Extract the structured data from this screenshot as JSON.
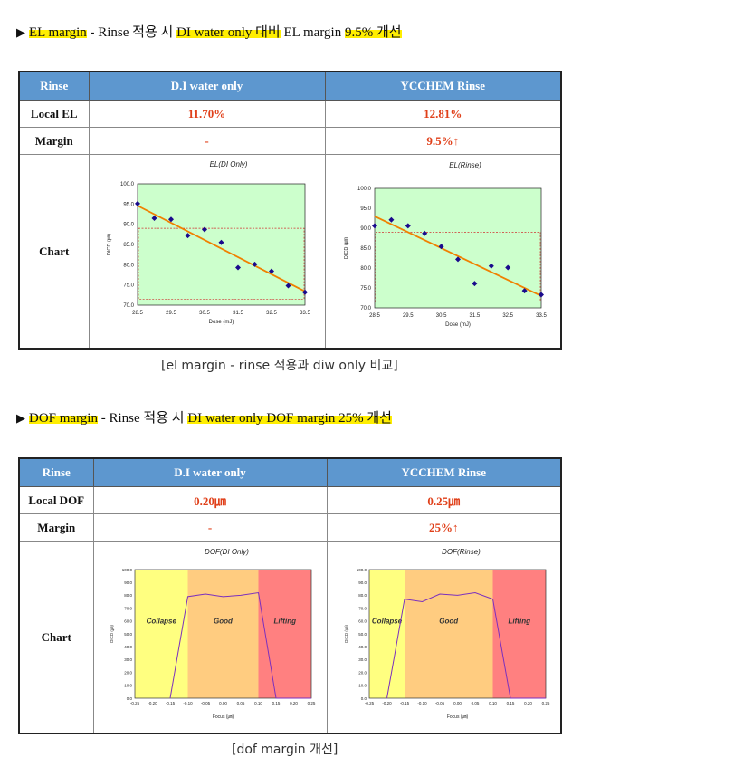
{
  "section1": {
    "heading": {
      "marker": "▶",
      "parts": [
        {
          "text": "EL margin",
          "hl": true
        },
        {
          "text": " - Rinse 적용 시 ",
          "hl": false
        },
        {
          "text": "DI water only 대비",
          "hl": true
        },
        {
          "text": " EL margin ",
          "hl": false
        },
        {
          "text": "9.5% 개선",
          "hl": true
        }
      ]
    },
    "table": {
      "headers": [
        "Rinse",
        "D.I  water only",
        "YCCHEM Rinse"
      ],
      "rows": [
        {
          "label": "Local EL",
          "di": "11.70%",
          "yc": "12.81%"
        },
        {
          "label": "Margin",
          "di": "-",
          "yc": "9.5%↑"
        }
      ],
      "chart_row_label": "Chart"
    },
    "caption": "[el margin - rinse 적용과 diw only 비교]"
  },
  "section2": {
    "heading": {
      "marker": "▶",
      "parts": [
        {
          "text": "DOF margin",
          "hl": true
        },
        {
          "text": " - Rinse 적용 시 ",
          "hl": false
        },
        {
          "text": "DI water only DOF margin 25% 개선",
          "hl": true
        }
      ]
    },
    "table": {
      "headers": [
        "Rinse",
        "D.I  water only",
        "YCCHEM Rinse"
      ],
      "rows": [
        {
          "label": "Local DOF",
          "di": "0.20㎛",
          "yc": "0.25㎛"
        },
        {
          "label": "Margin",
          "di": "-",
          "yc": "25%↑"
        }
      ],
      "chart_row_label": "Chart"
    },
    "caption": "[dof margin 개선]"
  },
  "chart_data": [
    {
      "type": "scatter",
      "title": "EL(DI Only)",
      "xlabel": "Dose (mJ)",
      "ylabel": "DICD (㎛)",
      "xlim": [
        28.5,
        33.5
      ],
      "ylim": [
        70,
        100
      ],
      "xticks": [
        "28.5",
        "29.5",
        "30.5",
        "31.5",
        "32.5",
        "33.5"
      ],
      "yticks": [
        "70.0",
        "75.0",
        "80.0",
        "85.0",
        "90.0",
        "95.0",
        "100.0"
      ],
      "points": [
        [
          28.5,
          95.1
        ],
        [
          29.0,
          91.5
        ],
        [
          29.5,
          91.2
        ],
        [
          30.0,
          87.2
        ],
        [
          30.5,
          88.7
        ],
        [
          31.0,
          85.5
        ],
        [
          31.5,
          79.3
        ],
        [
          32.0,
          80.1
        ],
        [
          32.5,
          78.4
        ],
        [
          33.0,
          74.8
        ],
        [
          33.5,
          73.2
        ]
      ],
      "trend": [
        [
          28.5,
          94.6
        ],
        [
          33.5,
          73.4
        ]
      ],
      "limits": [
        71.5,
        89
      ],
      "colors": {
        "plot_bg": "#ccffcc",
        "point": "#1a0a8c",
        "trend": "#f08000",
        "limit": "#d03030"
      }
    },
    {
      "type": "scatter",
      "title": "EL(Rinse)",
      "xlabel": "Dose (mJ)",
      "ylabel": "DICD (㎛)",
      "xlim": [
        28.5,
        33.5
      ],
      "ylim": [
        70,
        100
      ],
      "xticks": [
        "28.5",
        "29.5",
        "30.5",
        "31.5",
        "32.5",
        "33.5"
      ],
      "yticks": [
        "70.0",
        "75.0",
        "80.0",
        "85.0",
        "90.0",
        "95.0",
        "100.0"
      ],
      "points": [
        [
          28.5,
          90.6
        ],
        [
          29.0,
          92.1
        ],
        [
          29.5,
          90.6
        ],
        [
          30.0,
          88.7
        ],
        [
          30.5,
          85.4
        ],
        [
          31.0,
          82.2
        ],
        [
          31.5,
          76.1
        ],
        [
          32.0,
          80.5
        ],
        [
          32.5,
          80.1
        ],
        [
          33.0,
          74.3
        ],
        [
          33.5,
          73.3
        ]
      ],
      "trend": [
        [
          28.5,
          93.0
        ],
        [
          33.5,
          73.0
        ]
      ],
      "limits": [
        71.5,
        89
      ],
      "colors": {
        "plot_bg": "#ccffcc",
        "point": "#1a0a8c",
        "trend": "#f08000",
        "limit": "#d03030"
      }
    },
    {
      "type": "line",
      "title": "DOF(DI Only)",
      "xlabel": "Focus (㎛)",
      "ylabel": "DICD (㎛)",
      "xlim": [
        -0.25,
        0.25
      ],
      "ylim": [
        0,
        100
      ],
      "xticks": [
        "-0.25",
        "-0.20",
        "-0.15",
        "-0.10",
        "-0.05",
        "0.00",
        "0.05",
        "0.10",
        "0.15",
        "0.20",
        "0.25"
      ],
      "yticks": [
        "0.0",
        "10.0",
        "20.0",
        "30.0",
        "40.0",
        "50.0",
        "60.0",
        "70.0",
        "80.0",
        "90.0",
        "100.0"
      ],
      "regions": [
        {
          "label": "Collapse",
          "from": -0.25,
          "to": -0.1,
          "color": "#ffff80"
        },
        {
          "label": "Good",
          "from": -0.1,
          "to": 0.1,
          "color": "#ffcc80"
        },
        {
          "label": "Lifting",
          "from": 0.1,
          "to": 0.25,
          "color": "#ff8080"
        }
      ],
      "x": [
        -0.15,
        -0.1,
        -0.05,
        0.0,
        0.05,
        0.1,
        0.15
      ],
      "values": [
        0,
        79,
        81,
        79,
        80,
        82,
        0
      ],
      "colors": {
        "line": "#7b2fbe"
      }
    },
    {
      "type": "line",
      "title": "DOF(Rinse)",
      "xlabel": "Focus (㎛)",
      "ylabel": "DICD (㎛)",
      "xlim": [
        -0.25,
        0.25
      ],
      "ylim": [
        0,
        100
      ],
      "xticks": [
        "-0.25",
        "-0.20",
        "-0.15",
        "-0.10",
        "-0.05",
        "0.00",
        "0.05",
        "0.10",
        "0.15",
        "0.20",
        "0.25"
      ],
      "yticks": [
        "0.0",
        "10.0",
        "20.0",
        "30.0",
        "40.0",
        "50.0",
        "60.0",
        "70.0",
        "80.0",
        "90.0",
        "100.0"
      ],
      "regions": [
        {
          "label": "Collapse",
          "from": -0.25,
          "to": -0.15,
          "color": "#ffff80"
        },
        {
          "label": "Good",
          "from": -0.15,
          "to": 0.1,
          "color": "#ffcc80"
        },
        {
          "label": "Lifting",
          "from": 0.1,
          "to": 0.25,
          "color": "#ff8080"
        }
      ],
      "x": [
        -0.2,
        -0.15,
        -0.1,
        -0.05,
        0.0,
        0.05,
        0.1,
        0.15
      ],
      "values": [
        0,
        77,
        75,
        81,
        80,
        82,
        77,
        0
      ],
      "colors": {
        "line": "#7b2fbe"
      }
    }
  ]
}
